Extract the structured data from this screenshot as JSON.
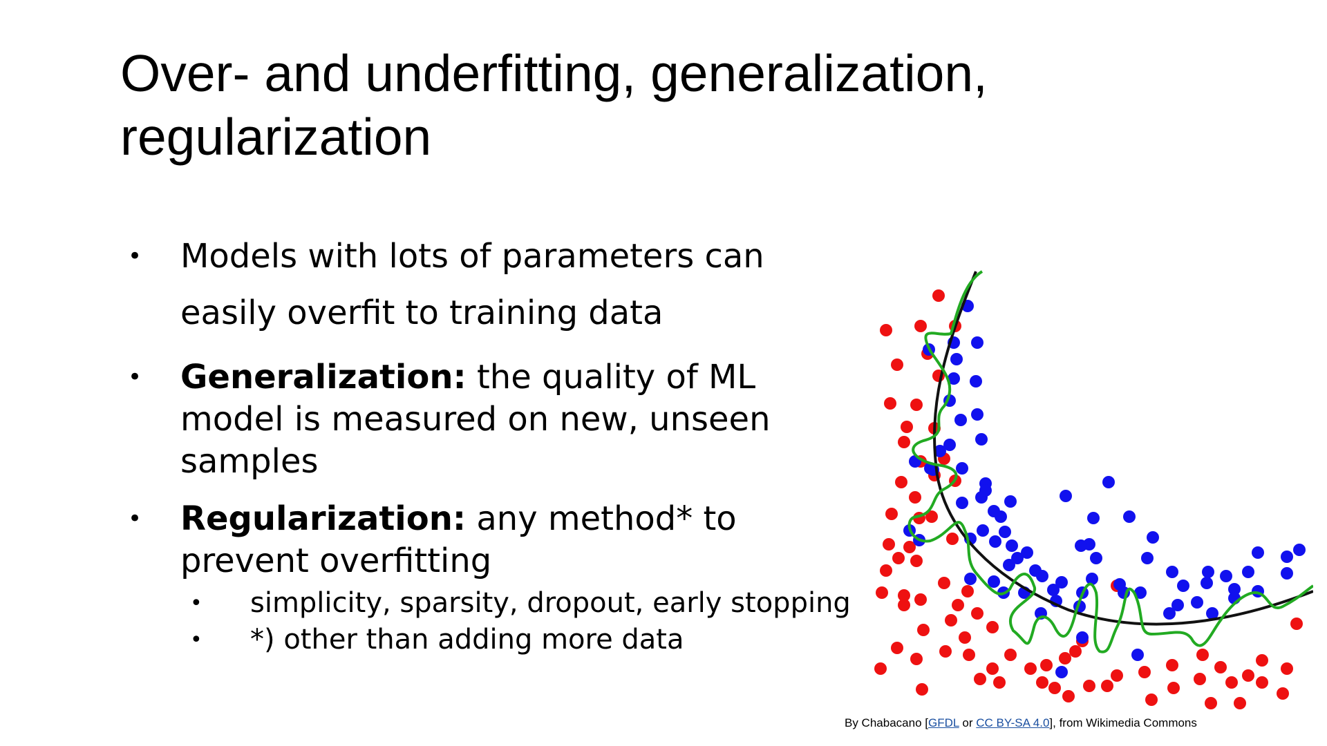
{
  "slide": {
    "title": "Over- and underfitting, generalization, regularization",
    "bullets": [
      {
        "bold": "",
        "text": "Models with lots of parameters can easily overfit to training data"
      },
      {
        "bold": "Generalization:",
        "text": " the quality of ML model is measured on new, unseen samples"
      },
      {
        "bold": "Regularization:",
        "text": " any method* to prevent overfitting"
      }
    ],
    "sub_bullets": [
      "simplicity, sparsity, dropout, early stopping",
      "*) other than adding more data"
    ],
    "bullet_symbol": "•"
  },
  "caption": {
    "prefix": "By Chabacano [",
    "link1": "GFDL",
    "mid": " or ",
    "link2": "CC BY-SA 4.0",
    "suffix": "], from Wikimedia Commons"
  },
  "colors": {
    "red_points": "#ee1111",
    "blue_points": "#1111ee",
    "overfit_curve": "#22aa22",
    "smooth_curve": "#111111"
  }
}
